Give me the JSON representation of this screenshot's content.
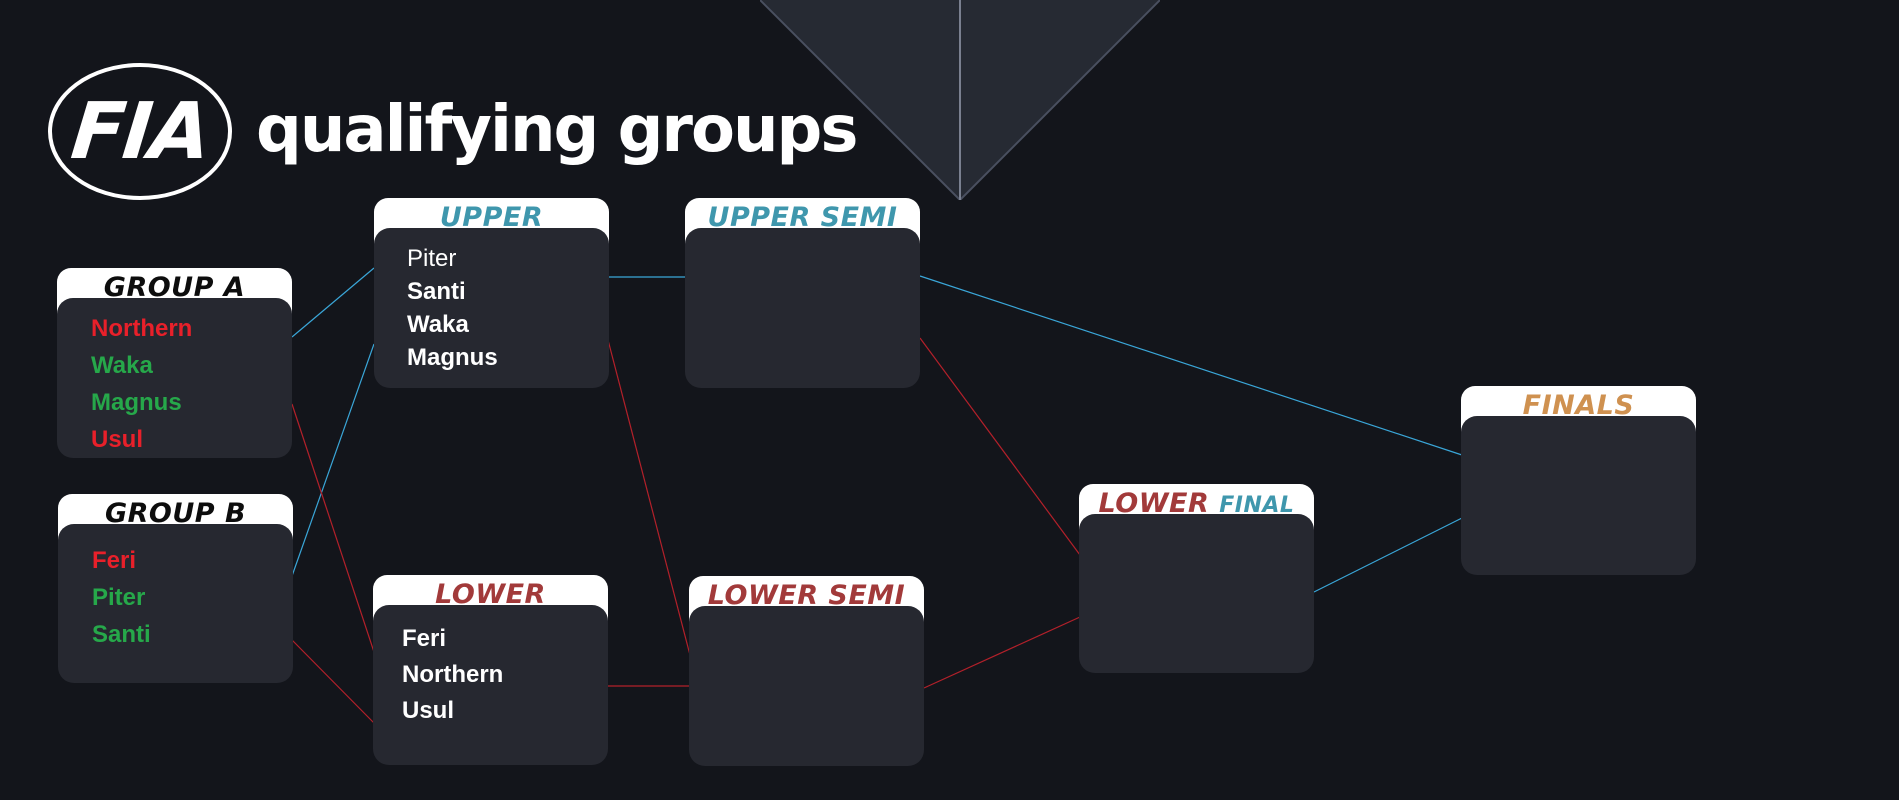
{
  "header": {
    "logo_text": "FIA",
    "title": "qualifying groups"
  },
  "colors": {
    "background": "#13151b",
    "card_body": "#262830",
    "eliminated_red": "#e8202a",
    "advanced_green": "#26a84a",
    "upper_blue": "#3f97ad",
    "lower_red": "#a23a3a",
    "finals_gold": "#cf9150",
    "upper_link": "#3aa6d8",
    "lower_link": "#b3202a"
  },
  "group_a": {
    "title": "GROUP  A",
    "entries": [
      {
        "name": "Northern",
        "status": "red"
      },
      {
        "name": "Waka",
        "status": "green"
      },
      {
        "name": "Magnus",
        "status": "green"
      },
      {
        "name": "Usul",
        "status": "red"
      }
    ]
  },
  "group_b": {
    "title": "GROUP  B",
    "entries": [
      {
        "name": "Feri",
        "status": "red"
      },
      {
        "name": "Piter",
        "status": "green"
      },
      {
        "name": "Santi",
        "status": "green"
      }
    ]
  },
  "upper": {
    "title": "UPPER",
    "entries": [
      "Piter",
      "Santi",
      "Waka",
      "Magnus"
    ]
  },
  "lower": {
    "title": "LOWER",
    "entries": [
      "Feri",
      "Northern",
      "Usul"
    ]
  },
  "upper_semi": {
    "title": "UPPER SEMI"
  },
  "lower_semi": {
    "title": "LOWER SEMI"
  },
  "lower_final": {
    "title_part1": "LOWER",
    "title_part2": "FINAL"
  },
  "finals": {
    "title": "FINALS"
  }
}
